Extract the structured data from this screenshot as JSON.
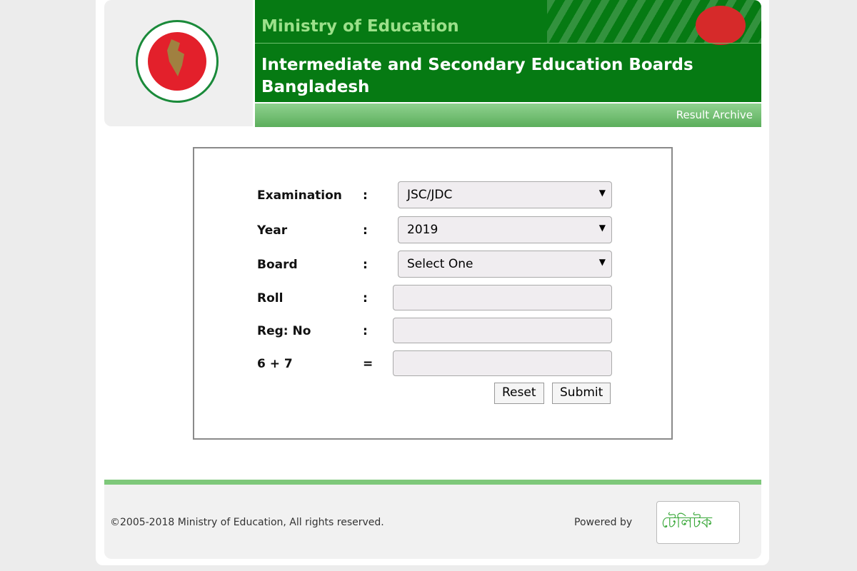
{
  "header": {
    "ministry": "Ministry of Education",
    "title_line1": "Intermediate and Secondary Education Boards",
    "title_line2": "Bangladesh",
    "subnav": "Result Archive"
  },
  "form": {
    "fields": [
      {
        "label": "Examination",
        "sep": ":",
        "type": "select",
        "value": "JSC/JDC"
      },
      {
        "label": "Year",
        "sep": ":",
        "type": "select",
        "value": "2019"
      },
      {
        "label": "Board",
        "sep": ":",
        "type": "select",
        "value": "Select One"
      },
      {
        "label": "Roll",
        "sep": ":",
        "type": "input",
        "value": ""
      },
      {
        "label": "Reg: No",
        "sep": ":",
        "type": "input",
        "value": ""
      },
      {
        "label": "6 + 7",
        "sep": "=",
        "type": "input",
        "value": ""
      }
    ],
    "reset": "Reset",
    "submit": "Submit"
  },
  "footer": {
    "copyright": "©2005-2018 Ministry of Education, All rights reserved.",
    "powered_by": "Powered by",
    "logo_text": "টেলিটক"
  }
}
